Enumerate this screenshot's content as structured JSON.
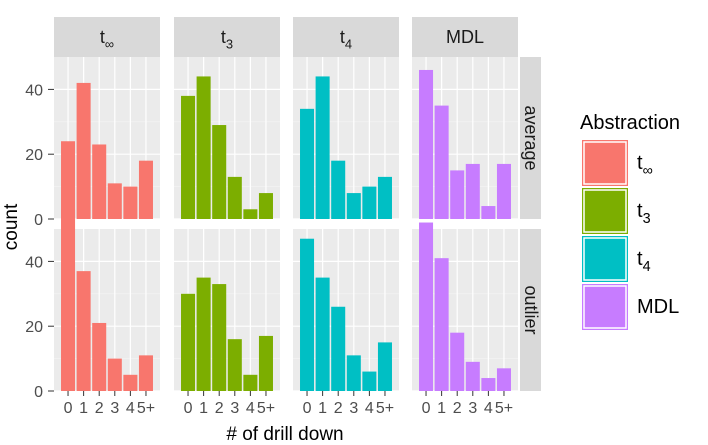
{
  "chart_data": {
    "type": "bar",
    "xlabel": "# of drill down",
    "ylabel": "count",
    "categories": [
      "0",
      "1",
      "2",
      "3",
      "4",
      "5+"
    ],
    "ylim": [
      0,
      50
    ],
    "yticks": [
      0,
      20,
      40
    ],
    "grid": true,
    "legend": {
      "title": "Abstraction",
      "position": "right",
      "entries": [
        {
          "base": "t",
          "sub": "∞",
          "color": "#F8766D"
        },
        {
          "base": "t",
          "sub": "3",
          "color": "#7CAE00"
        },
        {
          "base": "t",
          "sub": "4",
          "color": "#00BFC4"
        },
        {
          "base": "MDL",
          "sub": "",
          "color": "#C77CFF"
        }
      ]
    },
    "columns": [
      {
        "base": "t",
        "sub": "∞",
        "color": "#F8766D"
      },
      {
        "base": "t",
        "sub": "3",
        "color": "#7CAE00"
      },
      {
        "base": "t",
        "sub": "4",
        "color": "#00BFC4"
      },
      {
        "base": "MDL",
        "sub": "",
        "color": "#C77CFF"
      }
    ],
    "rows": [
      "average",
      "outlier"
    ],
    "values": [
      [
        [
          24,
          42,
          23,
          11,
          10,
          18
        ],
        [
          38,
          44,
          29,
          13,
          3,
          8
        ],
        [
          34,
          44,
          18,
          8,
          10,
          13
        ],
        [
          46,
          35,
          15,
          17,
          4,
          17
        ]
      ],
      [
        [
          56,
          37,
          21,
          10,
          5,
          11
        ],
        [
          30,
          35,
          33,
          16,
          5,
          17
        ],
        [
          47,
          35,
          26,
          11,
          6,
          15
        ],
        [
          52,
          41,
          18,
          9,
          4,
          7
        ]
      ]
    ]
  }
}
